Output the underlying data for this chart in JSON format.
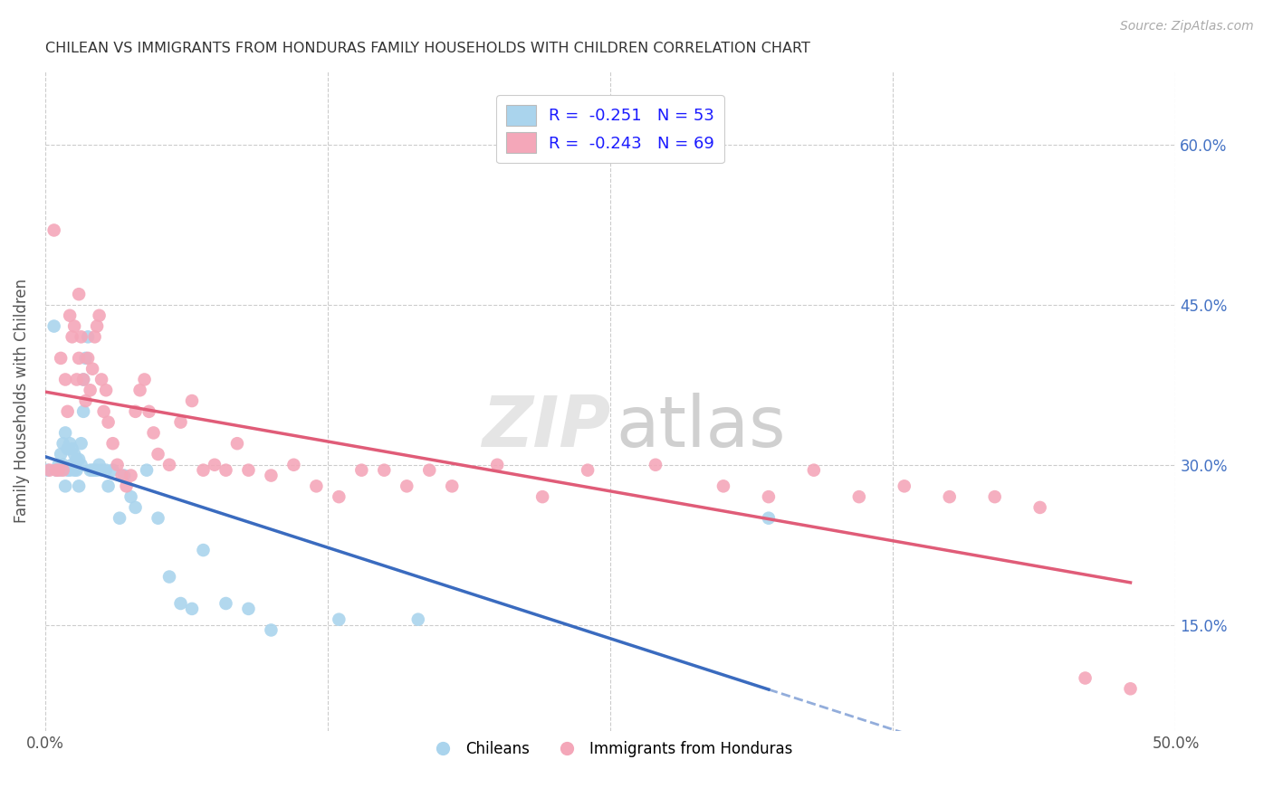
{
  "title": "CHILEAN VS IMMIGRANTS FROM HONDURAS FAMILY HOUSEHOLDS WITH CHILDREN CORRELATION CHART",
  "source": "Source: ZipAtlas.com",
  "ylabel": "Family Households with Children",
  "right_yticks": [
    "60.0%",
    "45.0%",
    "30.0%",
    "15.0%"
  ],
  "right_ytick_vals": [
    0.6,
    0.45,
    0.3,
    0.15
  ],
  "legend_blue_label": "R =  -0.251   N = 53",
  "legend_pink_label": "R =  -0.243   N = 69",
  "legend_bottom_blue": "Chileans",
  "legend_bottom_pink": "Immigrants from Honduras",
  "blue_color": "#aad4ed",
  "pink_color": "#f4a7b9",
  "blue_line_color": "#3a6bbf",
  "pink_line_color": "#e05c78",
  "xlim": [
    0.0,
    0.5
  ],
  "ylim": [
    0.05,
    0.67
  ],
  "xgrid_lines": [
    0.0,
    0.125,
    0.25,
    0.375,
    0.5
  ],
  "ygrid_lines": [
    0.15,
    0.3,
    0.45,
    0.6
  ],
  "chileans_x": [
    0.001,
    0.004,
    0.005,
    0.006,
    0.007,
    0.007,
    0.008,
    0.008,
    0.009,
    0.009,
    0.01,
    0.01,
    0.011,
    0.011,
    0.012,
    0.012,
    0.013,
    0.013,
    0.014,
    0.014,
    0.015,
    0.015,
    0.016,
    0.016,
    0.017,
    0.017,
    0.018,
    0.019,
    0.02,
    0.021,
    0.022,
    0.023,
    0.024,
    0.025,
    0.027,
    0.028,
    0.03,
    0.033,
    0.035,
    0.038,
    0.04,
    0.045,
    0.05,
    0.055,
    0.06,
    0.065,
    0.07,
    0.08,
    0.09,
    0.1,
    0.13,
    0.165,
    0.32
  ],
  "chileans_y": [
    0.295,
    0.43,
    0.295,
    0.3,
    0.295,
    0.31,
    0.3,
    0.32,
    0.28,
    0.33,
    0.295,
    0.315,
    0.32,
    0.295,
    0.3,
    0.315,
    0.295,
    0.31,
    0.295,
    0.305,
    0.28,
    0.305,
    0.3,
    0.32,
    0.35,
    0.38,
    0.4,
    0.42,
    0.295,
    0.295,
    0.295,
    0.295,
    0.3,
    0.295,
    0.295,
    0.28,
    0.295,
    0.25,
    0.29,
    0.27,
    0.26,
    0.295,
    0.25,
    0.195,
    0.17,
    0.165,
    0.22,
    0.17,
    0.165,
    0.145,
    0.155,
    0.155,
    0.25
  ],
  "honduras_x": [
    0.002,
    0.004,
    0.005,
    0.006,
    0.007,
    0.008,
    0.009,
    0.01,
    0.011,
    0.012,
    0.013,
    0.014,
    0.015,
    0.015,
    0.016,
    0.017,
    0.018,
    0.019,
    0.02,
    0.021,
    0.022,
    0.023,
    0.024,
    0.025,
    0.026,
    0.027,
    0.028,
    0.03,
    0.032,
    0.034,
    0.036,
    0.038,
    0.04,
    0.042,
    0.044,
    0.046,
    0.048,
    0.05,
    0.055,
    0.06,
    0.065,
    0.07,
    0.075,
    0.08,
    0.085,
    0.09,
    0.1,
    0.11,
    0.12,
    0.13,
    0.14,
    0.15,
    0.16,
    0.17,
    0.18,
    0.2,
    0.22,
    0.24,
    0.27,
    0.3,
    0.32,
    0.34,
    0.36,
    0.38,
    0.4,
    0.42,
    0.44,
    0.46,
    0.48
  ],
  "honduras_y": [
    0.295,
    0.52,
    0.295,
    0.295,
    0.4,
    0.295,
    0.38,
    0.35,
    0.44,
    0.42,
    0.43,
    0.38,
    0.46,
    0.4,
    0.42,
    0.38,
    0.36,
    0.4,
    0.37,
    0.39,
    0.42,
    0.43,
    0.44,
    0.38,
    0.35,
    0.37,
    0.34,
    0.32,
    0.3,
    0.29,
    0.28,
    0.29,
    0.35,
    0.37,
    0.38,
    0.35,
    0.33,
    0.31,
    0.3,
    0.34,
    0.36,
    0.295,
    0.3,
    0.295,
    0.32,
    0.295,
    0.29,
    0.3,
    0.28,
    0.27,
    0.295,
    0.295,
    0.28,
    0.295,
    0.28,
    0.3,
    0.27,
    0.295,
    0.3,
    0.28,
    0.27,
    0.295,
    0.27,
    0.28,
    0.27,
    0.27,
    0.26,
    0.1,
    0.09
  ]
}
